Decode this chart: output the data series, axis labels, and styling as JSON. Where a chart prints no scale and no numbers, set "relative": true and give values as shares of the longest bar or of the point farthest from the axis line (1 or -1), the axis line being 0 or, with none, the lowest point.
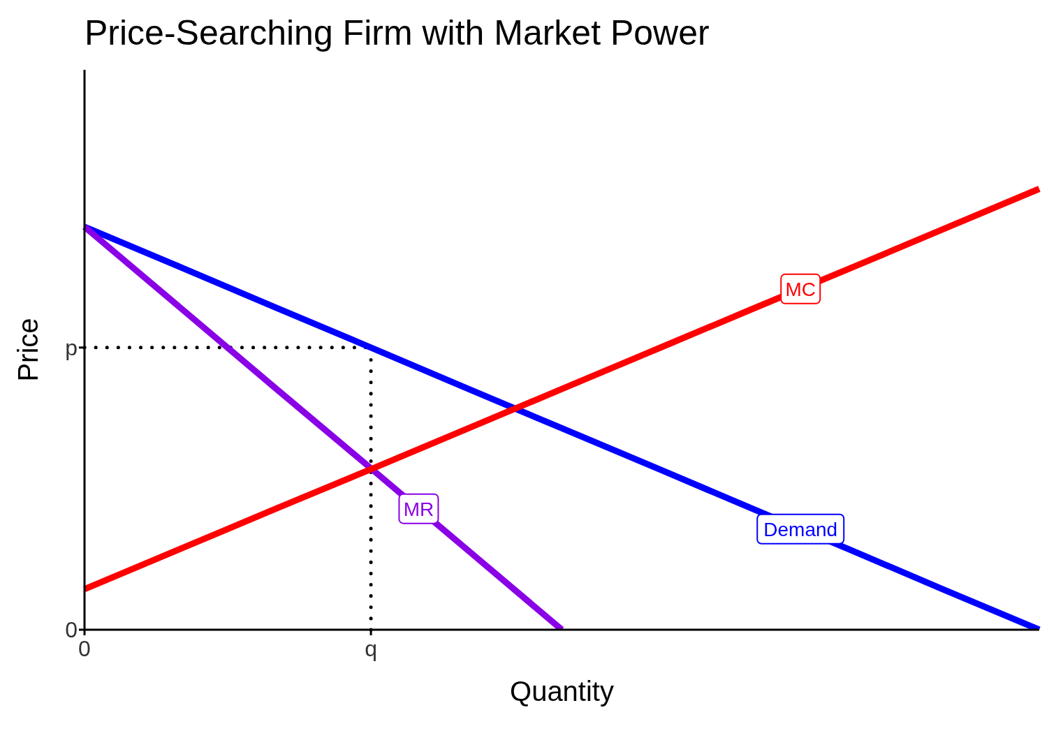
{
  "chart_data": {
    "type": "line",
    "title": "Price-Searching Firm with Market Power",
    "xlabel": "Quantity",
    "ylabel": "Price",
    "relative": true,
    "categories": [
      "0",
      null,
      null,
      "q",
      null,
      null,
      null,
      null,
      null,
      null,
      null
    ],
    "annotations": [
      "0"
    ],
    "ref_lines": [
      {
        "axis": "y",
        "value": 0.64,
        "label": "p",
        "color": "#000000",
        "line_style": "dotted"
      },
      {
        "axis": "x",
        "value": "q",
        "color": "#000000",
        "line_style": "dotted"
      }
    ],
    "grid": false,
    "legend": false,
    "marker": "none",
    "line_style": "solid",
    "series": [
      {
        "name": "Demand",
        "color": "#0000ff",
        "values": [
          0.914,
          0.823,
          0.731,
          0.64,
          0.548,
          0.457,
          0.366,
          0.274,
          0.183,
          0.091,
          0
        ]
      },
      {
        "name": "MR",
        "color": "#8a00e6",
        "values": [
          0.914,
          0.731,
          0.548,
          0.366,
          0.183,
          0,
          null,
          null,
          null,
          null,
          null
        ]
      },
      {
        "name": "MC",
        "color": "#ff0000",
        "values": [
          0.092,
          0.183,
          0.274,
          0.364,
          0.455,
          0.546,
          0.637,
          0.728,
          0.818,
          0.909,
          1.0
        ]
      }
    ]
  }
}
